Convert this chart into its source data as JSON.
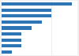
{
  "values": [
    7,
    5,
    5,
    4,
    3,
    2,
    2,
    2,
    1
  ],
  "bar_color": "#2e75b6",
  "background_color": "#f0f0f0",
  "plot_background": "#ffffff",
  "bar_height": 0.55
}
